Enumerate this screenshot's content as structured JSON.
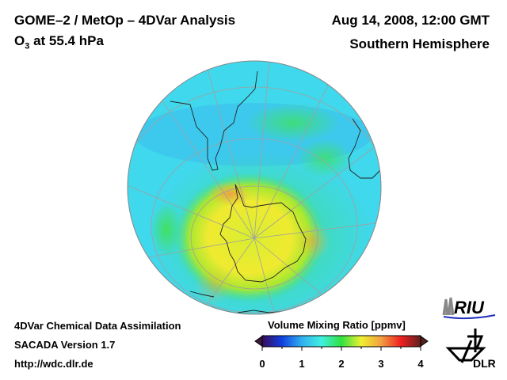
{
  "header": {
    "title": "GOME–2 / MetOp – 4DVar Analysis",
    "species": "O",
    "species_sub": "3",
    "level": " at 55.4 hPa",
    "date": "Aug 14, 2008, 12:00 GMT",
    "hemisphere": "Southern Hemisphere"
  },
  "footer": {
    "line1": "4DVar Chemical Data Assimilation",
    "line2": "SACADA Version 1.7",
    "line3": "http://wdc.dlr.de"
  },
  "colorbar": {
    "title": "Volume Mixing Ratio [ppmv]",
    "ticks": [
      "0",
      "1",
      "2",
      "3",
      "4"
    ],
    "range": [
      0,
      4
    ],
    "colors": [
      "#3a0a5a",
      "#1040e0",
      "#30b0f0",
      "#40f0e0",
      "#30e040",
      "#f0f030",
      "#f0a040",
      "#f02020",
      "#602020"
    ]
  },
  "logos": {
    "riu": "RIU",
    "dlr": "DLR"
  }
}
